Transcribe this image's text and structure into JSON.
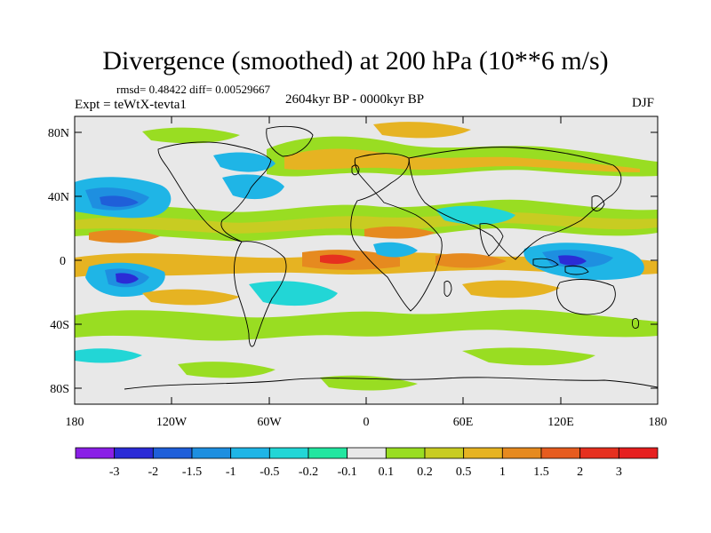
{
  "title": "Divergence (smoothed) at 200 hPa (10**6 m/s)",
  "stats": "rmsd= 0.48422 diff= 0.00529667",
  "experiment": "Expt = teWtX-tevta1",
  "period": "2604kyr BP - 0000kyr BP",
  "season": "DJF",
  "axes": {
    "lat_labels": [
      "80N",
      "40N",
      "0",
      "40S",
      "80S"
    ],
    "lon_labels": [
      "180",
      "120W",
      "60W",
      "0",
      "60E",
      "120E",
      "180"
    ]
  },
  "colorbar": {
    "labels": [
      "-3",
      "-2",
      "-1.5",
      "-1",
      "-0.5",
      "-0.2",
      "-0.1",
      "0.1",
      "0.2",
      "0.5",
      "1",
      "1.5",
      "2",
      "3"
    ],
    "colors": [
      "#8a1fe6",
      "#2b2bd6",
      "#1f5fd9",
      "#1e8fe0",
      "#1fb5e6",
      "#22d6d6",
      "#22e6a0",
      "#e8e8e8",
      "#99dd22",
      "#c8cc22",
      "#e6b322",
      "#e68a1f",
      "#e65c1f",
      "#e6301f",
      "#e61f1f"
    ]
  },
  "background_color": "#e8e8e8"
}
